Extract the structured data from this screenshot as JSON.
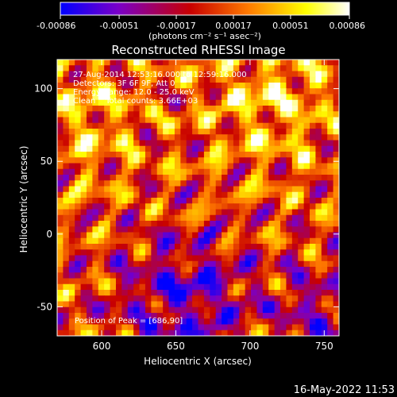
{
  "chart_data": {
    "type": "heatmap",
    "title": "Reconstructed RHESSI Image",
    "xlabel": "Heliocentric X (arcsec)",
    "ylabel": "Heliocentric Y (arcsec)",
    "xlim": [
      570,
      760
    ],
    "ylim": [
      -70,
      120
    ],
    "x_ticks": [
      600,
      650,
      700,
      750
    ],
    "y_ticks": [
      -50,
      0,
      50,
      100
    ],
    "colorbar": {
      "range": [
        -0.00086,
        0.00086
      ],
      "tick_values": [
        -0.00086,
        -0.00051,
        -0.00017,
        0.00017,
        0.00051,
        0.00086
      ],
      "tick_labels": [
        "-0.00086",
        "-0.00051",
        "-0.00017",
        "0.00017",
        "0.00051",
        "0.00086"
      ],
      "units_label": "(photons cm⁻² s⁻¹ asec⁻²)",
      "colors": [
        "#0000ff",
        "#7a00c8",
        "#c80000",
        "#ff7a00",
        "#ffff00",
        "#ffffff"
      ]
    },
    "annotations": {
      "time_range": "27-Aug-2014 12:53:16.000 to 12:59:16.000",
      "detectors": "Detectors: 3F 6F 9F, Att 0",
      "energy_range": "Energy Range: 12.0 - 25.0 keV",
      "clean": "Clean    Total counts: 3.66E+03",
      "peak": "Position of Peak = [686,90]"
    },
    "timestamp": "16-May-2022 11:53"
  }
}
